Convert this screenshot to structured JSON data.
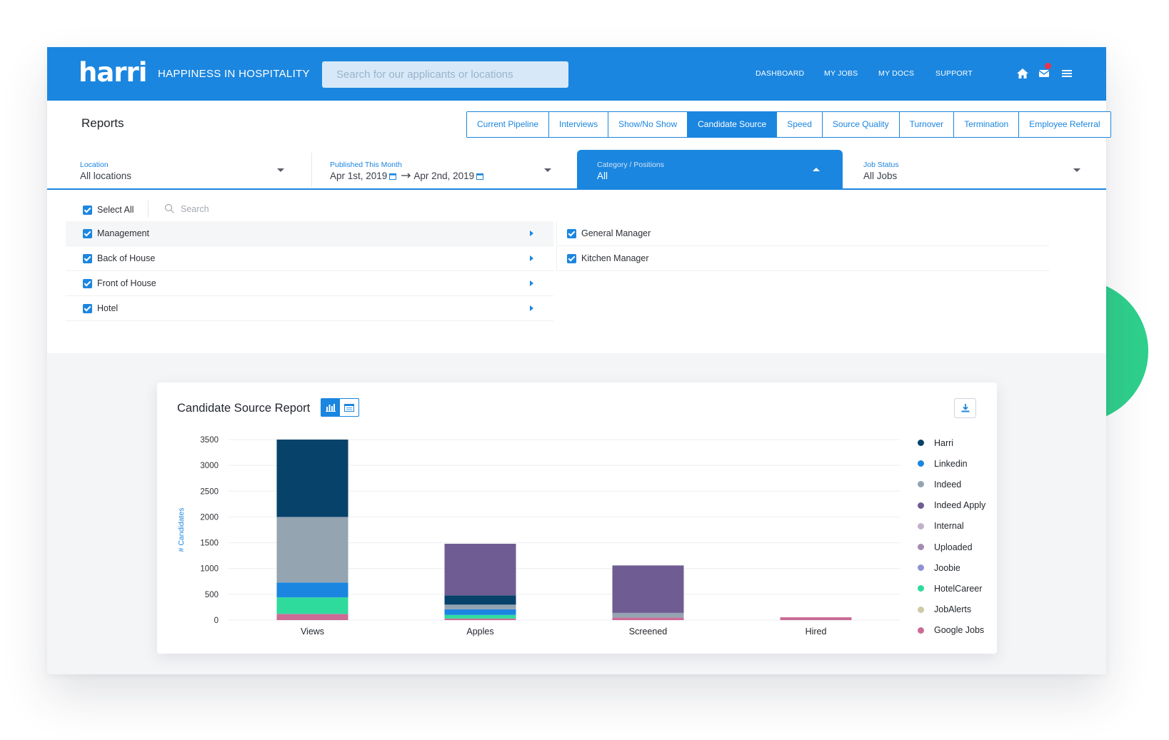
{
  "brand": {
    "logo": "harri",
    "tagline": "HAPPINESS IN HOSPITALITY"
  },
  "search": {
    "placeholder": "Search for our applicants or locations"
  },
  "nav": {
    "dashboard": "DASHBOARD",
    "my_jobs": "MY JOBS",
    "my_docs": "MY DOCS",
    "support": "SUPPORT"
  },
  "header_icons": {
    "home": "home-icon",
    "mail": "mail-icon",
    "menu": "menu-icon"
  },
  "reports": {
    "title": "Reports",
    "tabs": [
      {
        "label": "Current Pipeline"
      },
      {
        "label": "Interviews"
      },
      {
        "label": "Show/No Show"
      },
      {
        "label": "Candidate Source"
      },
      {
        "label": "Speed"
      },
      {
        "label": "Source Quality"
      },
      {
        "label": "Turnover"
      },
      {
        "label": "Termination"
      },
      {
        "label": "Employee Referral"
      }
    ],
    "active_tab": "Candidate Source"
  },
  "filters": {
    "location": {
      "label": "Location",
      "value": "All locations"
    },
    "published": {
      "label": "Published This Month",
      "start": "Apr 1st, 2019",
      "end": "Apr 2nd, 2019"
    },
    "category": {
      "label": "Category / Positions",
      "value": "All"
    },
    "job_status": {
      "label": "Job Status",
      "value": "All Jobs"
    }
  },
  "category_panel": {
    "select_all_label": "Select All",
    "search_placeholder": "Search",
    "categories": [
      {
        "label": "Management",
        "checked": true
      },
      {
        "label": "Back of House",
        "checked": true
      },
      {
        "label": "Front of House",
        "checked": true
      },
      {
        "label": "Hotel",
        "checked": true
      }
    ],
    "positions": [
      {
        "label": "General Manager",
        "checked": true
      },
      {
        "label": "Kitchen Manager",
        "checked": true
      }
    ]
  },
  "chart_card": {
    "title": "Candidate Source Report"
  },
  "chart_data": {
    "type": "bar",
    "stacked": true,
    "categories": [
      "Views",
      "Apples",
      "Screened",
      "Hired"
    ],
    "ylabel": "# Candidates",
    "ylim": [
      0,
      3500
    ],
    "yticks": [
      0,
      500,
      1000,
      1500,
      2000,
      2500,
      3000,
      3500
    ],
    "grid": true,
    "legend_position": "right",
    "series": [
      {
        "name": "Google Jobs",
        "color": "#cb6b96",
        "values": [
          120,
          30,
          50,
          55
        ]
      },
      {
        "name": "HotelCareer",
        "color": "#2fdb9c",
        "values": [
          320,
          70,
          0,
          0
        ]
      },
      {
        "name": "Linkedin",
        "color": "#1b86df",
        "values": [
          290,
          110,
          0,
          0
        ]
      },
      {
        "name": "Indeed",
        "color": "#94a4b1",
        "values": [
          1270,
          90,
          90,
          0
        ]
      },
      {
        "name": "Harri",
        "color": "#07426a",
        "values": [
          1500,
          180,
          0,
          0
        ]
      },
      {
        "name": "Indeed Apply",
        "color": "#6e5c92",
        "values": [
          0,
          1000,
          920,
          0
        ]
      }
    ],
    "legend": [
      {
        "name": "Harri",
        "color": "#07426a"
      },
      {
        "name": "Linkedin",
        "color": "#1b86df"
      },
      {
        "name": "Indeed",
        "color": "#94a4b1"
      },
      {
        "name": "Indeed Apply",
        "color": "#6e5c92"
      },
      {
        "name": "Internal",
        "color": "#c3b1cc"
      },
      {
        "name": "Uploaded",
        "color": "#a58bb0"
      },
      {
        "name": "Joobie",
        "color": "#8f93d1"
      },
      {
        "name": "HotelCareer",
        "color": "#2fdb9c"
      },
      {
        "name": "JobAlerts",
        "color": "#cfc9a6"
      },
      {
        "name": "Google Jobs",
        "color": "#cb6b96"
      }
    ]
  }
}
